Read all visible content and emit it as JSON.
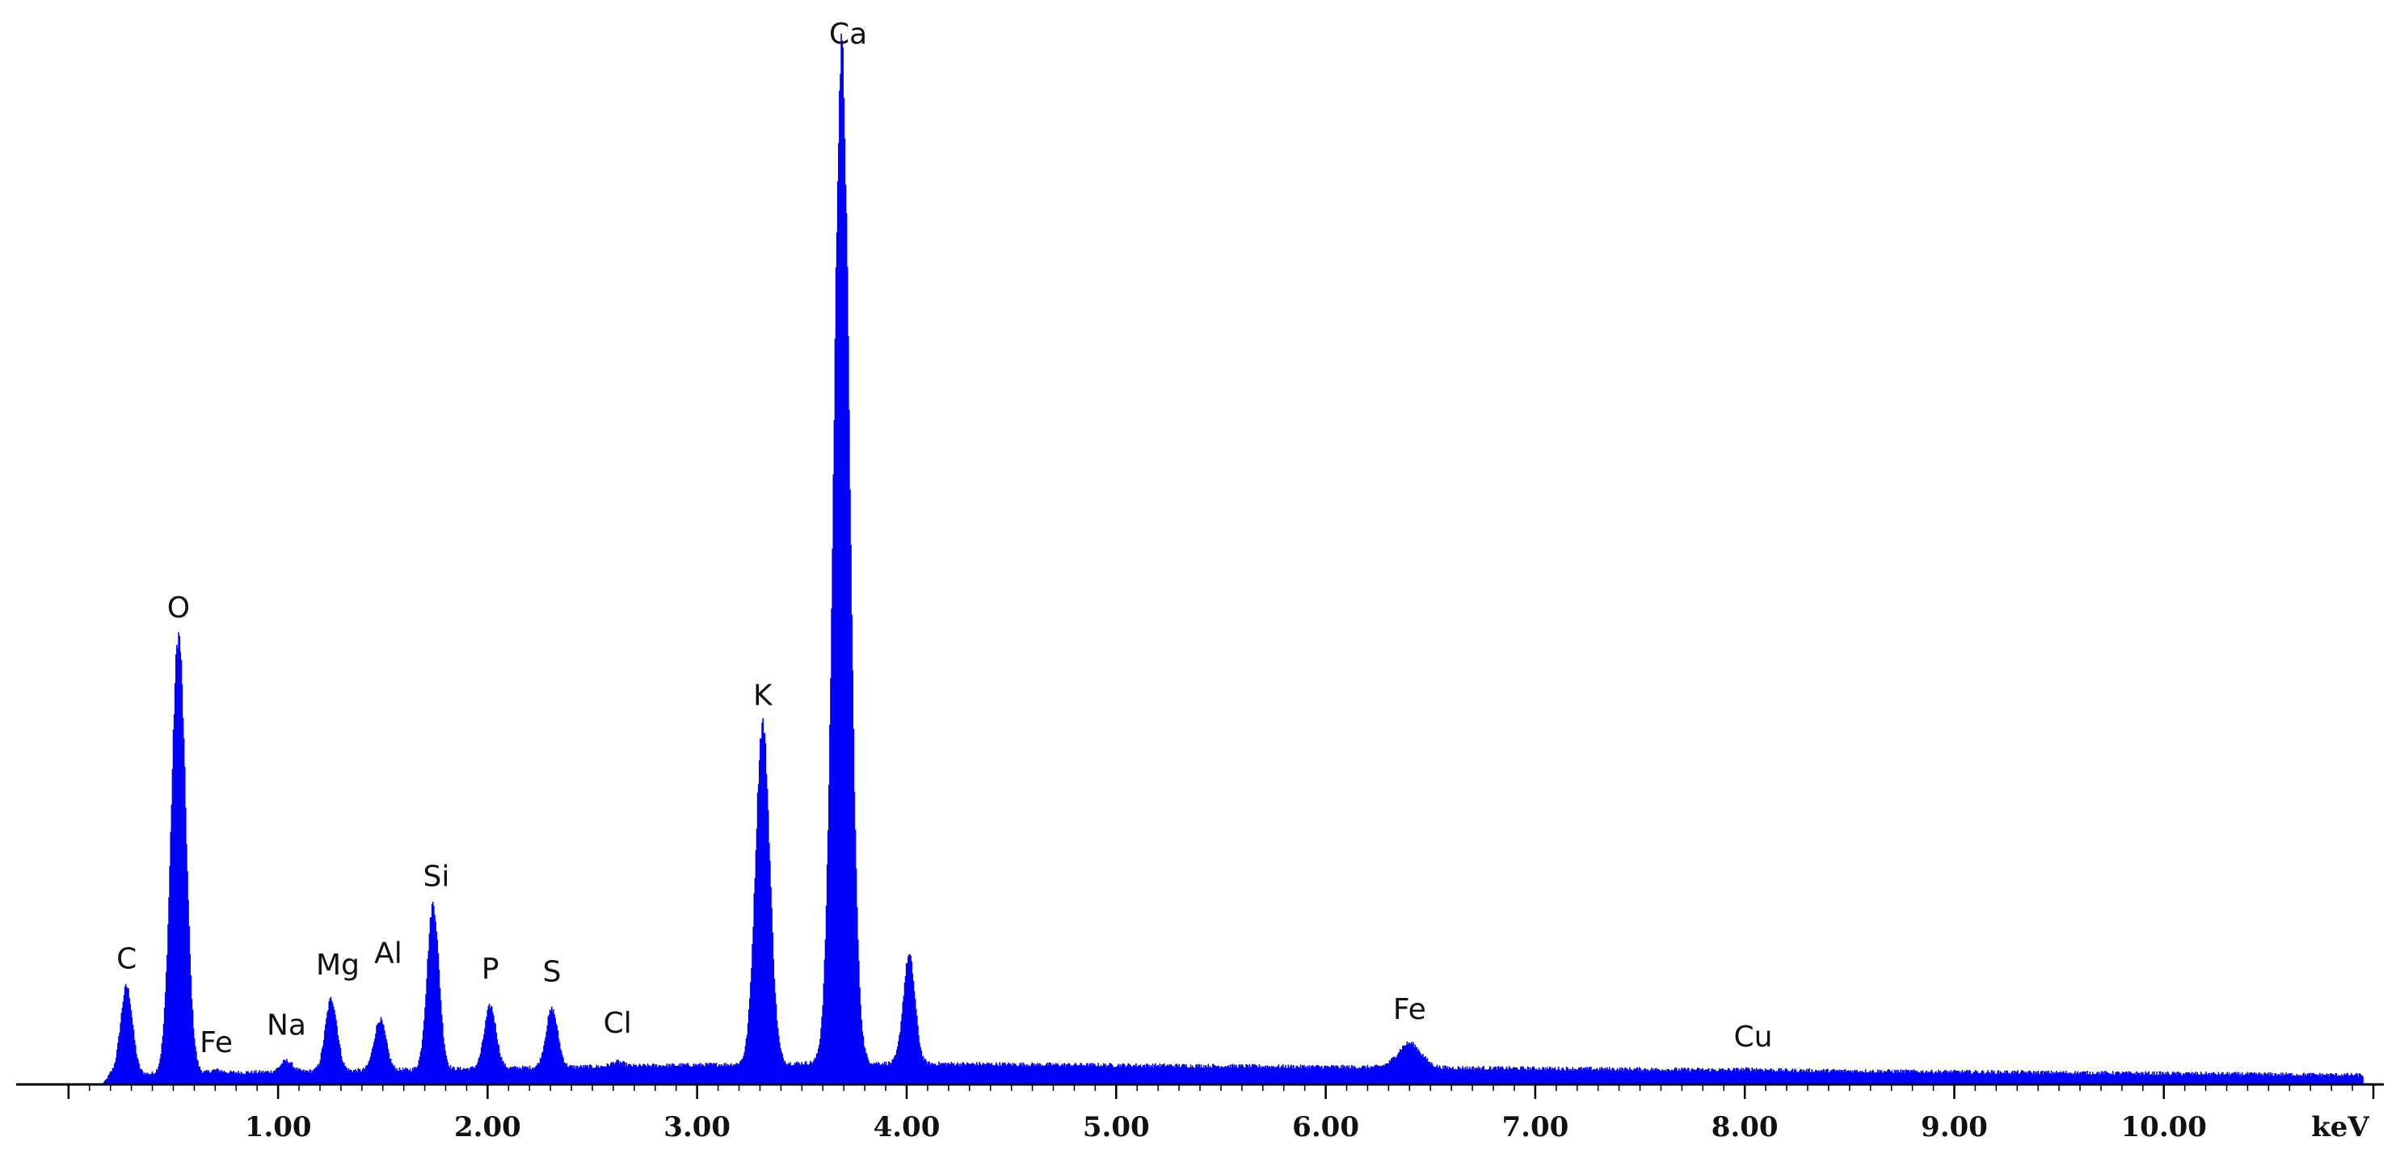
{
  "chart_data": {
    "type": "area",
    "title": "",
    "xlabel": "keV",
    "ylabel": "",
    "xlim": [
      -0.25,
      11.05
    ],
    "ylim": [
      0,
      100
    ],
    "grid": false,
    "legend": "none",
    "color": "#0000ff",
    "axis_color": "#000000",
    "tick_labels": [
      "1.00",
      "2.00",
      "3.00",
      "4.00",
      "5.00",
      "6.00",
      "7.00",
      "8.00",
      "9.00",
      "10.00"
    ],
    "tick_values": [
      1,
      2,
      3,
      4,
      5,
      6,
      7,
      8,
      9,
      10
    ],
    "baseline": 0.8,
    "peaks": [
      {
        "label": "C",
        "x": 0.277,
        "y": 9.5
      },
      {
        "label": "O",
        "x": 0.525,
        "y": 43.5
      },
      {
        "label": "Fe",
        "x": 0.705,
        "y": 1.4
      },
      {
        "label": "Na",
        "x": 1.04,
        "y": 2.3
      },
      {
        "label": "Mg",
        "x": 1.254,
        "y": 8.3
      },
      {
        "label": "Al",
        "x": 1.487,
        "y": 6.3
      },
      {
        "label": "Si",
        "x": 1.74,
        "y": 17.5
      },
      {
        "label": "P",
        "x": 2.013,
        "y": 7.6
      },
      {
        "label": "S",
        "x": 2.307,
        "y": 7.3
      },
      {
        "label": "Cl",
        "x": 2.62,
        "y": 2.2
      },
      {
        "label": "K",
        "x": 3.313,
        "y": 35.0
      },
      {
        "label": "Ca",
        "x": 3.69,
        "y": 100
      },
      {
        "label": "",
        "x": 4.012,
        "y": 12.5
      },
      {
        "label": "Fe",
        "x": 6.4,
        "y": 4.0
      },
      {
        "label": "Cu",
        "x": 8.04,
        "y": 1.5
      }
    ]
  }
}
